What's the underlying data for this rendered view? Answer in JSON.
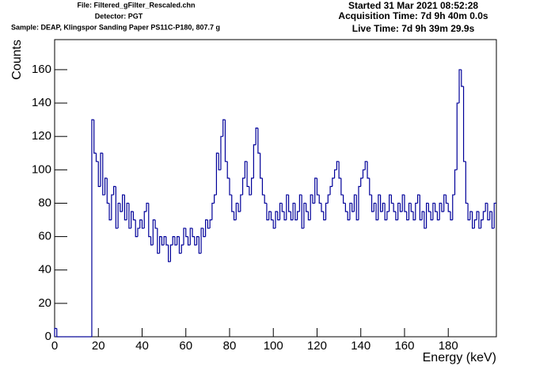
{
  "chart_data": {
    "type": "histogram",
    "annotations": [
      "File: Filtered_gFilter_Rescaled.chn",
      "Detector: PGT",
      "Sample: DEAP, Klingspor Sanding Paper PS11C-P180, 807.7 g",
      "Started 31 Mar 2021 08:52:28",
      "Acquisition Time: 7d 9h 40m 0.0s",
      "Live Time: 7d 9h 39m 29.9s"
    ],
    "x_label": "Energy (keV)",
    "y_label": "Counts",
    "color": "#000099",
    "xlim": [
      0,
      202
    ],
    "ylim": [
      0,
      178
    ],
    "xticks": [
      0,
      20,
      40,
      60,
      80,
      100,
      120,
      140,
      160,
      180
    ],
    "yticks": [
      0,
      20,
      40,
      60,
      80,
      100,
      120,
      140,
      160
    ],
    "bins": [
      0,
      1,
      2,
      3,
      4,
      5,
      6,
      7,
      8,
      9,
      10,
      11,
      12,
      13,
      14,
      15,
      16,
      17,
      18,
      19,
      20,
      21,
      22,
      23,
      24,
      25,
      26,
      27,
      28,
      29,
      30,
      31,
      32,
      33,
      34,
      35,
      36,
      37,
      38,
      39,
      40,
      41,
      42,
      43,
      44,
      45,
      46,
      47,
      48,
      49,
      50,
      51,
      52,
      53,
      54,
      55,
      56,
      57,
      58,
      59,
      60,
      61,
      62,
      63,
      64,
      65,
      66,
      67,
      68,
      69,
      70,
      71,
      72,
      73,
      74,
      75,
      76,
      77,
      78,
      79,
      80,
      81,
      82,
      83,
      84,
      85,
      86,
      87,
      88,
      89,
      90,
      91,
      92,
      93,
      94,
      95,
      96,
      97,
      98,
      99,
      100,
      101,
      102,
      103,
      104,
      105,
      106,
      107,
      108,
      109,
      110,
      111,
      112,
      113,
      114,
      115,
      116,
      117,
      118,
      119,
      120,
      121,
      122,
      123,
      124,
      125,
      126,
      127,
      128,
      129,
      130,
      131,
      132,
      133,
      134,
      135,
      136,
      137,
      138,
      139,
      140,
      141,
      142,
      143,
      144,
      145,
      146,
      147,
      148,
      149,
      150,
      151,
      152,
      153,
      154,
      155,
      156,
      157,
      158,
      159,
      160,
      161,
      162,
      163,
      164,
      165,
      166,
      167,
      168,
      169,
      170,
      171,
      172,
      173,
      174,
      175,
      176,
      177,
      178,
      179,
      180,
      181,
      182,
      183,
      184,
      185,
      186,
      187,
      188,
      189,
      190,
      191,
      192,
      193,
      194,
      195,
      196,
      197,
      198,
      199,
      200,
      201,
      202
    ],
    "counts": [
      5,
      0,
      0,
      0,
      0,
      0,
      0,
      0,
      0,
      0,
      0,
      0,
      0,
      0,
      0,
      0,
      0,
      130,
      110,
      105,
      90,
      110,
      85,
      95,
      80,
      70,
      85,
      90,
      65,
      80,
      75,
      85,
      70,
      80,
      65,
      75,
      70,
      60,
      65,
      70,
      65,
      75,
      80,
      60,
      55,
      70,
      65,
      50,
      60,
      55,
      60,
      55,
      45,
      55,
      60,
      55,
      60,
      50,
      55,
      65,
      60,
      55,
      65,
      60,
      55,
      60,
      50,
      65,
      60,
      70,
      65,
      70,
      80,
      85,
      110,
      100,
      120,
      130,
      105,
      95,
      85,
      75,
      70,
      80,
      75,
      85,
      95,
      105,
      90,
      85,
      95,
      115,
      125,
      110,
      95,
      85,
      80,
      70,
      75,
      70,
      65,
      75,
      70,
      80,
      75,
      70,
      85,
      75,
      70,
      80,
      70,
      75,
      85,
      65,
      80,
      75,
      70,
      85,
      80,
      95,
      85,
      80,
      75,
      70,
      80,
      85,
      90,
      95,
      100,
      105,
      95,
      85,
      80,
      75,
      70,
      80,
      75,
      85,
      70,
      90,
      95,
      100,
      105,
      95,
      85,
      75,
      80,
      70,
      85,
      75,
      80,
      70,
      75,
      85,
      80,
      75,
      70,
      80,
      75,
      85,
      75,
      70,
      80,
      75,
      70,
      80,
      85,
      70,
      75,
      65,
      80,
      75,
      70,
      80,
      75,
      70,
      80,
      75,
      85,
      80,
      75,
      70,
      85,
      100,
      140,
      160,
      150,
      105,
      80,
      70,
      75,
      65,
      70,
      75,
      65,
      70,
      75,
      80,
      70,
      75,
      65,
      80
    ]
  }
}
